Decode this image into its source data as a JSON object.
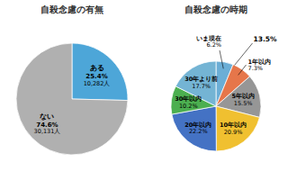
{
  "chart_data": [
    {
      "type": "pie",
      "title": "自殺念慮の有無",
      "categories": [
        "ある",
        "ない"
      ],
      "values": [
        25.4,
        74.6
      ],
      "value_labels": [
        "25.4%",
        "74.6%"
      ],
      "count_labels": [
        "10,282人",
        "30,131人"
      ],
      "colors": [
        "#4da6d8",
        "#b0b0b0"
      ],
      "data_labels": true
    },
    {
      "type": "pie",
      "title": "自殺念慮の時期",
      "categories": [
        "いま現在",
        "1年以内",
        "5年以内",
        "10年以内",
        "20年以内",
        "30年以内",
        "30年より前"
      ],
      "values": [
        6.2,
        7.3,
        15.5,
        20.9,
        22.2,
        10.2,
        17.7
      ],
      "value_labels": [
        "6.2%",
        "7.3%",
        "15.5%",
        "20.9%",
        "22.2%",
        "10.2%",
        "17.7%"
      ],
      "colors": [
        "#6baed6",
        "#e6764a",
        "#969696",
        "#f0c030",
        "#4472c4",
        "#4caf50",
        "#74b4d4"
      ],
      "data_labels": true,
      "annotation": "13.5%"
    }
  ]
}
